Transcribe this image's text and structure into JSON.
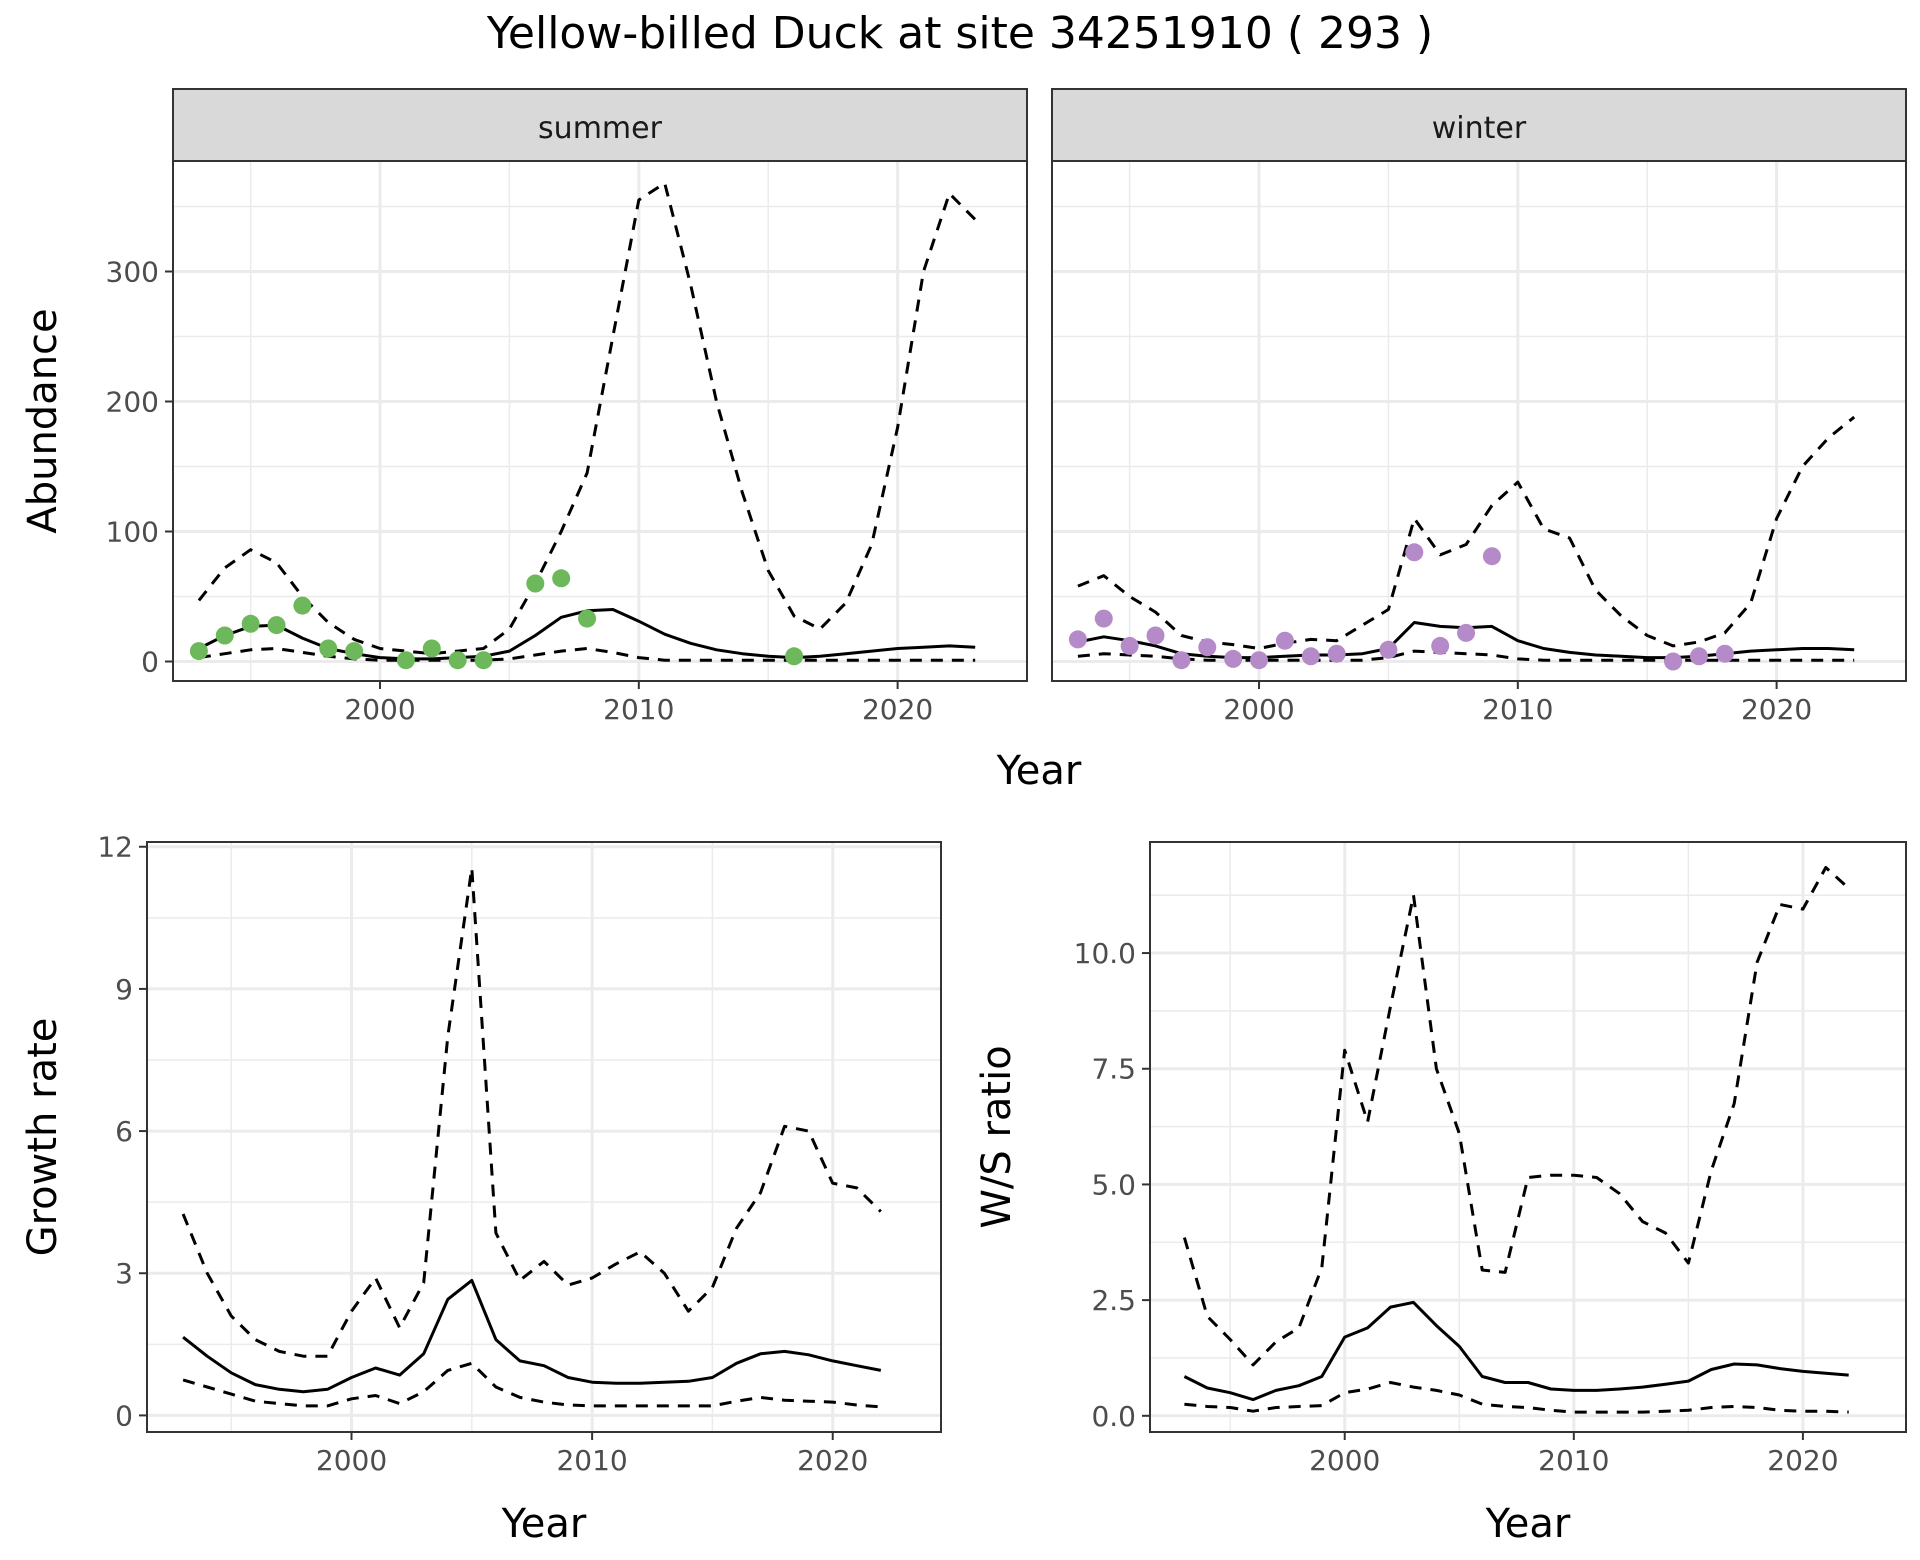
{
  "title": "Yellow-billed Duck at site 34251910 ( 293 )",
  "colors": {
    "summer_points": "#6db85a",
    "winter_points": "#b48bc8",
    "strip_fill": "#d9d9d9",
    "grid": "#ebebeb",
    "line": "#000000"
  },
  "chart_data": [
    {
      "type": "line",
      "title": "summer",
      "facet_group": "Abundance",
      "xlabel": "Year",
      "ylabel": "Abundance",
      "xlim": [
        1992,
        2025
      ],
      "ylim": [
        -15,
        385
      ],
      "xticks": [
        2000,
        2010,
        2020
      ],
      "yticks": [
        0,
        100,
        200,
        300
      ],
      "grid": true,
      "x": [
        1993,
        1994,
        1995,
        1996,
        1997,
        1998,
        1999,
        2000,
        2001,
        2002,
        2003,
        2004,
        2005,
        2006,
        2007,
        2008,
        2009,
        2010,
        2011,
        2012,
        2013,
        2014,
        2015,
        2016,
        2017,
        2018,
        2019,
        2020,
        2021,
        2022,
        2023
      ],
      "series": [
        {
          "style": "solid",
          "values": [
            10,
            20,
            27,
            28,
            18,
            10,
            6,
            3,
            2,
            2,
            3,
            4,
            8,
            20,
            34,
            39,
            40,
            31,
            21,
            14,
            9,
            6,
            4,
            3,
            4,
            6,
            8,
            10,
            11,
            12,
            11
          ]
        },
        {
          "style": "dashed",
          "values": [
            47,
            72,
            86,
            76,
            50,
            30,
            17,
            10,
            8,
            6,
            8,
            10,
            25,
            60,
            100,
            145,
            250,
            355,
            368,
            290,
            200,
            130,
            70,
            35,
            25,
            45,
            90,
            180,
            300,
            360,
            340
          ]
        },
        {
          "style": "dashed",
          "values": [
            3,
            6,
            9,
            10,
            7,
            4,
            2,
            1,
            1,
            1,
            1,
            1,
            2,
            5,
            8,
            10,
            7,
            3,
            1,
            1,
            1,
            1,
            1,
            1,
            1,
            1,
            1,
            1,
            1,
            1,
            1
          ]
        }
      ],
      "points": {
        "x": [
          1993,
          1994,
          1995,
          1996,
          1997,
          1998,
          1999,
          2001,
          2002,
          2003,
          2004,
          2006,
          2007,
          2008,
          2016
        ],
        "y": [
          8,
          20,
          29,
          28,
          43,
          10,
          8,
          1,
          10,
          1,
          1,
          60,
          64,
          33,
          4
        ]
      }
    },
    {
      "type": "line",
      "title": "winter",
      "facet_group": "Abundance",
      "xlabel": "Year",
      "ylabel": "Abundance",
      "xlim": [
        1992,
        2025
      ],
      "ylim": [
        -15,
        385
      ],
      "xticks": [
        2000,
        2010,
        2020
      ],
      "yticks": [
        0,
        100,
        200,
        300
      ],
      "grid": true,
      "x": [
        1993,
        1994,
        1995,
        1996,
        1997,
        1998,
        1999,
        2000,
        2001,
        2002,
        2003,
        2004,
        2005,
        2006,
        2007,
        2008,
        2009,
        2010,
        2011,
        2012,
        2013,
        2014,
        2015,
        2016,
        2017,
        2018,
        2019,
        2020,
        2021,
        2022,
        2023
      ],
      "series": [
        {
          "style": "solid",
          "values": [
            15,
            19,
            16,
            12,
            6,
            4,
            3,
            3,
            4,
            5,
            5,
            6,
            10,
            30,
            27,
            26,
            27,
            16,
            10,
            7,
            5,
            4,
            3,
            3,
            4,
            6,
            8,
            9,
            10,
            10,
            9
          ]
        },
        {
          "style": "dashed",
          "values": [
            58,
            66,
            50,
            38,
            20,
            15,
            13,
            10,
            14,
            17,
            16,
            28,
            40,
            110,
            82,
            90,
            120,
            138,
            102,
            95,
            55,
            35,
            20,
            12,
            15,
            22,
            45,
            110,
            150,
            172,
            188
          ]
        },
        {
          "style": "dashed",
          "values": [
            4,
            6,
            5,
            4,
            2,
            1,
            1,
            1,
            1,
            1,
            1,
            1,
            3,
            8,
            7,
            6,
            5,
            2,
            1,
            1,
            1,
            1,
            1,
            1,
            1,
            1,
            1,
            1,
            1,
            1,
            1
          ]
        }
      ],
      "points": {
        "x": [
          1993,
          1994,
          1995,
          1996,
          1997,
          1998,
          1999,
          2000,
          2001,
          2002,
          2003,
          2005,
          2006,
          2007,
          2008,
          2009,
          2016,
          2017,
          2018
        ],
        "y": [
          17,
          33,
          12,
          20,
          1,
          11,
          2,
          1,
          16,
          4,
          6,
          9,
          84,
          12,
          22,
          81,
          0,
          4,
          6
        ]
      }
    },
    {
      "type": "line",
      "title": "",
      "xlabel": "Year",
      "ylabel": "Growth rate",
      "xlim": [
        1991.5,
        2024.5
      ],
      "ylim": [
        -0.35,
        12.1
      ],
      "xticks": [
        2000,
        2010,
        2020
      ],
      "yticks": [
        0,
        3,
        6,
        9,
        12
      ],
      "grid": true,
      "x": [
        1993,
        1994,
        1995,
        1996,
        1997,
        1998,
        1999,
        2000,
        2001,
        2002,
        2003,
        2004,
        2005,
        2006,
        2007,
        2008,
        2009,
        2010,
        2011,
        2012,
        2013,
        2014,
        2015,
        2016,
        2017,
        2018,
        2019,
        2020,
        2021,
        2022
      ],
      "series": [
        {
          "style": "solid",
          "values": [
            1.65,
            1.25,
            0.9,
            0.65,
            0.55,
            0.5,
            0.55,
            0.8,
            1.0,
            0.85,
            1.3,
            2.45,
            2.85,
            1.6,
            1.15,
            1.05,
            0.8,
            0.7,
            0.68,
            0.68,
            0.7,
            0.72,
            0.8,
            1.1,
            1.3,
            1.35,
            1.28,
            1.15,
            1.05,
            0.95
          ]
        },
        {
          "style": "dashed",
          "values": [
            4.25,
            3.0,
            2.1,
            1.6,
            1.35,
            1.25,
            1.25,
            2.2,
            2.9,
            1.85,
            2.8,
            8.0,
            11.55,
            3.85,
            2.85,
            3.25,
            2.75,
            2.9,
            3.2,
            3.45,
            3.0,
            2.2,
            2.7,
            3.95,
            4.7,
            6.1,
            6.0,
            4.9,
            4.8,
            4.3
          ]
        },
        {
          "style": "dashed",
          "values": [
            0.75,
            0.6,
            0.45,
            0.3,
            0.25,
            0.2,
            0.2,
            0.35,
            0.42,
            0.25,
            0.5,
            0.95,
            1.1,
            0.6,
            0.38,
            0.28,
            0.22,
            0.2,
            0.2,
            0.2,
            0.2,
            0.2,
            0.2,
            0.3,
            0.38,
            0.32,
            0.3,
            0.28,
            0.22,
            0.18
          ]
        }
      ]
    },
    {
      "type": "line",
      "title": "",
      "xlabel": "Year",
      "ylabel": "W/S ratio",
      "xlim": [
        1991.5,
        2024.5
      ],
      "ylim": [
        -0.35,
        12.4
      ],
      "xticks": [
        2000,
        2010,
        2020
      ],
      "yticks": [
        0.0,
        2.5,
        5.0,
        7.5,
        10.0
      ],
      "ytick_labels": [
        "0.0",
        "2.5",
        "5.0",
        "7.5",
        "10.0"
      ],
      "grid": true,
      "x": [
        1993,
        1994,
        1995,
        1996,
        1997,
        1998,
        1999,
        2000,
        2001,
        2002,
        2003,
        2004,
        2005,
        2006,
        2007,
        2008,
        2009,
        2010,
        2011,
        2012,
        2013,
        2014,
        2015,
        2016,
        2017,
        2018,
        2019,
        2020,
        2021,
        2022
      ],
      "series": [
        {
          "style": "solid",
          "values": [
            0.85,
            0.6,
            0.5,
            0.35,
            0.55,
            0.65,
            0.85,
            1.7,
            1.9,
            2.35,
            2.45,
            1.95,
            1.5,
            0.85,
            0.72,
            0.72,
            0.58,
            0.55,
            0.55,
            0.58,
            0.62,
            0.68,
            0.75,
            1.0,
            1.12,
            1.1,
            1.02,
            0.96,
            0.92,
            0.88
          ]
        },
        {
          "style": "dashed",
          "values": [
            3.85,
            2.15,
            1.65,
            1.1,
            1.6,
            1.9,
            3.2,
            7.9,
            6.35,
            8.85,
            11.25,
            7.5,
            6.1,
            3.15,
            3.1,
            5.15,
            5.2,
            5.2,
            5.15,
            4.8,
            4.2,
            3.95,
            3.3,
            5.3,
            6.75,
            9.8,
            11.05,
            10.95,
            11.85,
            11.4
          ]
        },
        {
          "style": "dashed",
          "values": [
            0.25,
            0.2,
            0.18,
            0.1,
            0.18,
            0.2,
            0.22,
            0.5,
            0.58,
            0.72,
            0.62,
            0.55,
            0.45,
            0.25,
            0.2,
            0.18,
            0.12,
            0.08,
            0.08,
            0.08,
            0.08,
            0.1,
            0.12,
            0.18,
            0.2,
            0.18,
            0.12,
            0.1,
            0.1,
            0.08
          ]
        }
      ]
    }
  ]
}
